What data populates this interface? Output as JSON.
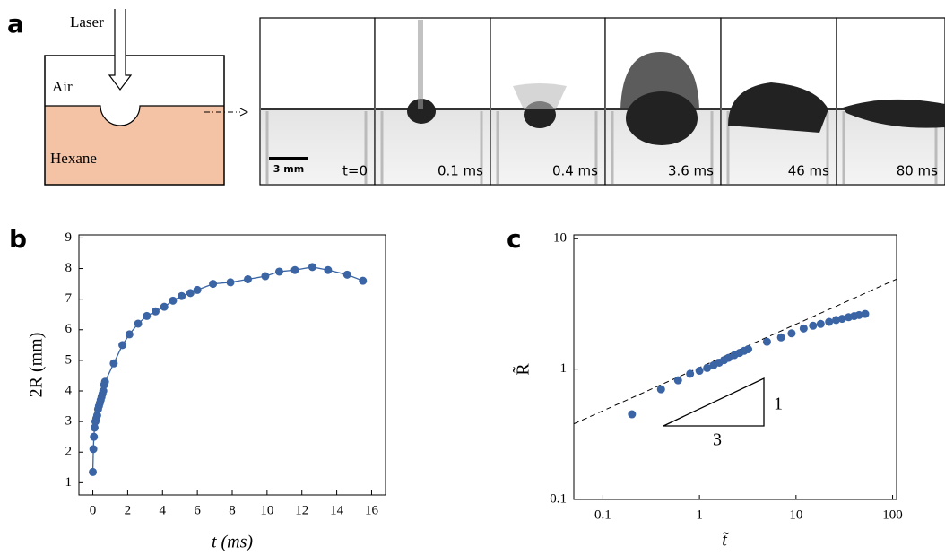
{
  "panel_a": {
    "label": "a",
    "laser": "Laser",
    "air": "Air",
    "hexane": "Hexane",
    "scale_bar": "3 mm",
    "frames": [
      "t=0",
      "0.1 ms",
      "0.4 ms",
      "3.6 ms",
      "46 ms",
      "80 ms"
    ]
  },
  "chart_data": [
    {
      "type": "line",
      "panel_label": "b",
      "x_label": "t (ms)",
      "y_label": "2R (mm)",
      "color": "#3a64a4",
      "x": [
        0,
        0.03,
        0.06,
        0.1,
        0.15,
        0.2,
        0.25,
        0.3,
        0.35,
        0.4,
        0.45,
        0.5,
        0.55,
        0.6,
        0.65,
        0.7,
        1.2,
        1.7,
        2.1,
        2.6,
        3.1,
        3.6,
        4.1,
        4.6,
        5.1,
        5.6,
        6.0,
        6.9,
        7.9,
        8.9,
        9.9,
        10.7,
        11.6,
        12.6,
        13.5,
        14.6,
        15.5
      ],
      "values": [
        1.35,
        2.1,
        2.5,
        2.8,
        3.0,
        3.1,
        3.2,
        3.4,
        3.5,
        3.6,
        3.7,
        3.8,
        3.9,
        4.0,
        4.2,
        4.3,
        4.9,
        5.5,
        5.85,
        6.2,
        6.45,
        6.6,
        6.75,
        6.95,
        7.1,
        7.2,
        7.3,
        7.5,
        7.55,
        7.65,
        7.75,
        7.9,
        7.95,
        8.05,
        7.95,
        7.8,
        7.6
      ],
      "xlim": [
        -0.8,
        16.8
      ],
      "ylim": [
        0.6,
        9.1
      ],
      "xticks": [
        0,
        2,
        4,
        6,
        8,
        10,
        12,
        14,
        16
      ],
      "yticks": [
        1,
        2,
        3,
        4,
        5,
        6,
        7,
        8,
        9
      ]
    },
    {
      "type": "scatter",
      "panel_label": "c",
      "x_label": "t̃",
      "y_label": "R̃",
      "color": "#3a64a4",
      "log_scale": true,
      "x": [
        0.2,
        0.4,
        0.6,
        0.8,
        1.0,
        1.2,
        1.4,
        1.6,
        1.8,
        2.0,
        2.3,
        2.6,
        2.9,
        3.2,
        5,
        7,
        9,
        12,
        15,
        18,
        22,
        26,
        30,
        35,
        40,
        45,
        52
      ],
      "values": [
        0.45,
        0.7,
        0.82,
        0.92,
        0.97,
        1.02,
        1.07,
        1.12,
        1.17,
        1.22,
        1.28,
        1.33,
        1.38,
        1.42,
        1.62,
        1.75,
        1.88,
        2.05,
        2.15,
        2.22,
        2.3,
        2.38,
        2.43,
        2.5,
        2.55,
        2.6,
        2.65
      ],
      "fit_line": {
        "x": [
          0.05,
          110
        ],
        "y": [
          0.38,
          4.9
        ]
      },
      "slope_labels": [
        "1",
        "3"
      ],
      "xlim": [
        0.05,
        110
      ],
      "ylim": [
        0.1,
        10.7
      ],
      "xticks": [
        0.1,
        1,
        10,
        100
      ],
      "yticks": [
        0.1,
        1,
        10
      ]
    }
  ]
}
